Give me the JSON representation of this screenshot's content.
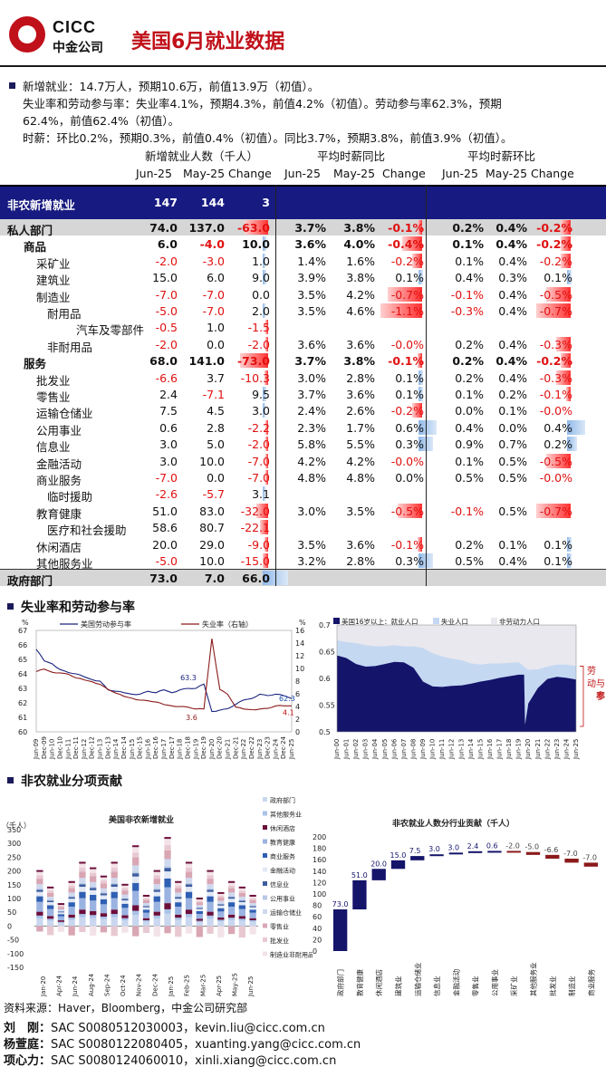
{
  "header": {
    "logo_en": "CICC",
    "logo_cn": "中金公司",
    "title": "美国6月就业数据"
  },
  "summary": {
    "line1": "新增就业：14.7万人，预期10.6万，前值13.9万（初值）。",
    "line2": "失业率和劳动参与率：失业率4.1%，预期4.3%，前值4.2%（初值）。劳动参与率62.3%，预期",
    "line3": "62.4%，前值62.4%（初值）。",
    "line4": "时薪：环比0.2%，预期0.3%，前值0.4%（初值）。同比3.7%，预期3.8%，前值3.9%（初值）。"
  },
  "table": {
    "group_headers": [
      "新增就业人数（千人）",
      "平均时薪同比",
      "平均时薪环比"
    ],
    "sub_headers": [
      "Jun-25",
      "May-25",
      "Change",
      "Jun-25",
      "May-25",
      "Change",
      "Jun-25",
      "May-25",
      "Change"
    ],
    "rows": [
      {
        "label": "非农新增就业",
        "indent": 0,
        "style": "banner",
        "v": [
          "147",
          "144",
          "3",
          "",
          "",
          "",
          "",
          "",
          ""
        ]
      },
      {
        "label": "私人部门",
        "indent": 0,
        "style": "bold-gray",
        "v": [
          "74.0",
          "137.0",
          "-63.0",
          "3.7%",
          "3.8%",
          "-0.1%",
          "0.2%",
          "0.4%",
          "-0.2%"
        ]
      },
      {
        "label": "商品",
        "indent": 1,
        "style": "bold",
        "v": [
          "6.0",
          "-4.0",
          "10.0",
          "3.6%",
          "4.0%",
          "-0.4%",
          "0.1%",
          "0.4%",
          "-0.2%"
        ]
      },
      {
        "label": "采矿业",
        "indent": 2,
        "style": "",
        "v": [
          "-2.0",
          "-3.0",
          "1.0",
          "1.4%",
          "1.6%",
          "-0.2%",
          "0.1%",
          "0.4%",
          "-0.2%"
        ]
      },
      {
        "label": "建筑业",
        "indent": 2,
        "style": "",
        "v": [
          "15.0",
          "6.0",
          "9.0",
          "3.9%",
          "3.8%",
          "0.1%",
          "0.4%",
          "0.3%",
          "0.1%"
        ]
      },
      {
        "label": "制造业",
        "indent": 2,
        "style": "",
        "v": [
          "-7.0",
          "-7.0",
          "0.0",
          "3.5%",
          "4.2%",
          "-0.7%",
          "-0.1%",
          "0.4%",
          "-0.5%"
        ]
      },
      {
        "label": "耐用品",
        "indent": 3,
        "style": "",
        "v": [
          "-5.0",
          "-7.0",
          "2.0",
          "3.5%",
          "4.6%",
          "-1.1%",
          "-0.3%",
          "0.4%",
          "-0.7%"
        ]
      },
      {
        "label": "汽车及零部件",
        "indent": 4,
        "style": "",
        "v": [
          "-0.5",
          "1.0",
          "-1.5",
          "",
          "",
          "",
          "",
          "",
          ""
        ]
      },
      {
        "label": "非耐用品",
        "indent": 3,
        "style": "",
        "v": [
          "-2.0",
          "0.0",
          "-2.0",
          "3.6%",
          "3.6%",
          "-0.0%",
          "0.2%",
          "0.4%",
          "-0.3%"
        ]
      },
      {
        "label": "服务",
        "indent": 1,
        "style": "bold",
        "v": [
          "68.0",
          "141.0",
          "-73.0",
          "3.7%",
          "3.8%",
          "-0.1%",
          "0.2%",
          "0.4%",
          "-0.2%"
        ]
      },
      {
        "label": "批发业",
        "indent": 2,
        "style": "",
        "v": [
          "-6.6",
          "3.7",
          "-10.3",
          "3.0%",
          "2.8%",
          "0.1%",
          "0.2%",
          "0.4%",
          "-0.3%"
        ]
      },
      {
        "label": "零售业",
        "indent": 2,
        "style": "",
        "v": [
          "2.4",
          "-7.1",
          "9.5",
          "3.7%",
          "3.6%",
          "0.1%",
          "0.1%",
          "0.2%",
          "-0.1%"
        ]
      },
      {
        "label": "运输仓储业",
        "indent": 2,
        "style": "",
        "v": [
          "7.5",
          "4.5",
          "3.0",
          "2.4%",
          "2.6%",
          "-0.2%",
          "0.0%",
          "0.1%",
          "-0.0%"
        ]
      },
      {
        "label": "公用事业",
        "indent": 2,
        "style": "",
        "v": [
          "0.6",
          "2.8",
          "-2.2",
          "2.3%",
          "1.7%",
          "0.6%",
          "0.4%",
          "0.0%",
          "0.4%"
        ]
      },
      {
        "label": "信息业",
        "indent": 2,
        "style": "",
        "v": [
          "3.0",
          "5.0",
          "-2.0",
          "5.8%",
          "5.5%",
          "0.3%",
          "0.9%",
          "0.7%",
          "0.2%"
        ]
      },
      {
        "label": "金融活动",
        "indent": 2,
        "style": "",
        "v": [
          "3.0",
          "10.0",
          "-7.0",
          "4.2%",
          "4.2%",
          "-0.0%",
          "0.1%",
          "0.5%",
          "-0.5%"
        ]
      },
      {
        "label": "商业服务",
        "indent": 2,
        "style": "",
        "v": [
          "-7.0",
          "0.0",
          "-7.0",
          "4.8%",
          "4.8%",
          "0.0%",
          "0.5%",
          "0.5%",
          "-0.0%"
        ]
      },
      {
        "label": "临时援助",
        "indent": 3,
        "style": "",
        "v": [
          "-2.6",
          "-5.7",
          "3.1",
          "",
          "",
          "",
          "",
          "",
          ""
        ]
      },
      {
        "label": "教育健康",
        "indent": 2,
        "style": "",
        "v": [
          "51.0",
          "83.0",
          "-32.0",
          "3.0%",
          "3.5%",
          "-0.5%",
          "-0.1%",
          "0.5%",
          "-0.7%"
        ]
      },
      {
        "label": "医疗和社会援助",
        "indent": 3,
        "style": "",
        "v": [
          "58.6",
          "80.7",
          "-22.1",
          "",
          "",
          "",
          "",
          "",
          ""
        ]
      },
      {
        "label": "休闲酒店",
        "indent": 2,
        "style": "",
        "v": [
          "20.0",
          "29.0",
          "-9.0",
          "3.5%",
          "3.6%",
          "-0.1%",
          "0.2%",
          "0.1%",
          "0.1%"
        ]
      },
      {
        "label": "其他服务业",
        "indent": 2,
        "style": "",
        "v": [
          "-5.0",
          "10.0",
          "-15.0",
          "3.2%",
          "2.8%",
          "0.3%",
          "0.5%",
          "0.4%",
          "0.1%"
        ]
      },
      {
        "label": "政府部门",
        "indent": 0,
        "style": "bold-gray",
        "v": [
          "73.0",
          "7.0",
          "66.0",
          "",
          "",
          "",
          "",
          "",
          ""
        ]
      }
    ]
  },
  "section2": {
    "title": "失业率和劳动参与率"
  },
  "section3": {
    "title": "非农就业分项贡献"
  },
  "chart_data": [
    {
      "type": "line",
      "series": [
        {
          "name": "美国劳动参与率",
          "color": "#1a237e",
          "last_label": "62.3",
          "peak_label": "63.3"
        },
        {
          "name": "失业率（右轴）",
          "color": "#8b1a1a",
          "last_label": "4.1",
          "low_label": "3.6"
        }
      ],
      "ylim_left": [
        60,
        67
      ],
      "ylim_right": [
        0,
        16
      ],
      "ylabel_left": "%",
      "ylabel_right": "%",
      "yticks_left": [
        "67",
        "66",
        "65",
        "64",
        "63",
        "62",
        "61",
        "60"
      ],
      "yticks_right": [
        "16",
        "14",
        "12",
        "10",
        "8",
        "6",
        "4",
        "2",
        "0"
      ],
      "x": [
        "Jun-09",
        "Dec-09",
        "Jun-10",
        "Dec-10",
        "Jun-11",
        "Dec-11",
        "Jun-12",
        "Dec-12",
        "Jun-13",
        "Dec-13",
        "Jun-14",
        "Dec-14",
        "Jun-15",
        "Dec-15",
        "Jun-16",
        "Dec-16",
        "Jun-17",
        "Dec-17",
        "Jun-18",
        "Dec-18",
        "Jun-19",
        "Dec-19",
        "Jun-20",
        "Dec-20",
        "Jun-21",
        "Dec-21",
        "Jun-22",
        "Dec-22",
        "Jun-23",
        "Dec-23",
        "Jun-24",
        "Dec-24",
        "Jun-25"
      ],
      "lfpr": [
        65.7,
        64.9,
        64.7,
        64.3,
        64.1,
        64.0,
        63.8,
        63.6,
        63.5,
        62.9,
        62.8,
        62.7,
        62.6,
        62.6,
        62.8,
        62.7,
        62.9,
        62.7,
        62.9,
        63.0,
        63.0,
        63.3,
        61.4,
        61.5,
        61.6,
        61.9,
        62.2,
        62.3,
        62.6,
        62.5,
        62.6,
        62.5,
        62.3
      ],
      "unrate": [
        9.5,
        9.9,
        9.4,
        9.3,
        9.1,
        8.5,
        8.2,
        7.9,
        7.5,
        6.7,
        6.1,
        5.6,
        5.3,
        5.0,
        4.9,
        4.7,
        4.3,
        4.1,
        4.0,
        3.9,
        3.6,
        3.6,
        11.0,
        6.7,
        5.9,
        3.9,
        3.6,
        3.5,
        3.6,
        3.7,
        4.1,
        4.1,
        4.1
      ]
    },
    {
      "type": "area",
      "legend": [
        "美国16岁以上：就业人口",
        "失业人口",
        "非劳动力人口"
      ],
      "colors": [
        "#14146b",
        "#c5d8f2",
        "#e8e8ee"
      ],
      "ylim": [
        0.5,
        0.7
      ],
      "yticks": [
        "0.7",
        "0.65",
        "0.6",
        "0.55",
        "0.5"
      ],
      "annotation": "劳动参与率",
      "x": [
        "Jun-00",
        "Jun-01",
        "Jun-02",
        "Jun-03",
        "Jun-04",
        "Jun-05",
        "Jun-06",
        "Jun-07",
        "Jun-08",
        "Jun-09",
        "Jun-10",
        "Jun-11",
        "Jun-12",
        "Jun-13",
        "Jun-14",
        "Jun-15",
        "Jun-16",
        "Jun-17",
        "Jun-18",
        "Jun-19",
        "Jun-20",
        "Jun-21",
        "Jun-22",
        "Jun-23",
        "Jun-24",
        "Jun-25"
      ],
      "employed": [
        0.643,
        0.638,
        0.627,
        0.622,
        0.623,
        0.627,
        0.631,
        0.63,
        0.62,
        0.594,
        0.585,
        0.584,
        0.586,
        0.587,
        0.59,
        0.594,
        0.597,
        0.601,
        0.604,
        0.607,
        0.553,
        0.582,
        0.599,
        0.603,
        0.601,
        0.598
      ],
      "participation": [
        0.671,
        0.668,
        0.666,
        0.662,
        0.66,
        0.66,
        0.662,
        0.66,
        0.66,
        0.657,
        0.647,
        0.641,
        0.637,
        0.634,
        0.628,
        0.626,
        0.628,
        0.628,
        0.629,
        0.63,
        0.616,
        0.617,
        0.622,
        0.626,
        0.626,
        0.623
      ]
    },
    {
      "type": "bar",
      "stacked": true,
      "title": "美国非农新增就业",
      "ylabel": "（千人）",
      "ylim": [
        -150,
        350
      ],
      "yticks": [
        "350",
        "300",
        "250",
        "200",
        "150",
        "100",
        "50",
        "0",
        "-50",
        "-100",
        "-150"
      ],
      "categories_labeled": [
        "Jan-20",
        "Apr-24",
        "Jun-24",
        "Aug-24",
        "Sep-24",
        "Oct-24",
        "Nov-24",
        "Dec-24",
        "Jan-25",
        "Feb-25",
        "Mar-25",
        "Apr-25",
        "May-25",
        "Jun-25"
      ],
      "legend": [
        "政府部门",
        "其他服务业",
        "休闲酒店",
        "教育健康",
        "商业服务",
        "金融活动",
        "信息业",
        "公用事业",
        "运输仓储业",
        "零售业",
        "批发业",
        "制造业非耐用品"
      ],
      "totals": [
        200,
        140,
        80,
        160,
        230,
        210,
        180,
        230,
        150,
        290,
        110,
        200,
        320,
        160,
        230,
        100,
        200,
        120,
        160,
        140,
        110
      ]
    },
    {
      "type": "bar",
      "subtype": "waterfall",
      "title": "非农就业人数分行业贡献（千人）",
      "ylim": [
        0,
        200
      ],
      "yticks": [
        "200",
        "180",
        "160",
        "140",
        "120",
        "100",
        "80",
        "60",
        "40",
        "20",
        "0"
      ],
      "categories": [
        "政府部门",
        "教育健康",
        "休闲酒店",
        "建筑业",
        "运输仓储业",
        "信息业",
        "金融活动",
        "零售业",
        "公用事业",
        "采矿业",
        "其他服务业",
        "批发业",
        "制造业",
        "商业服务"
      ],
      "values": [
        73.0,
        51.0,
        20.0,
        15.0,
        7.5,
        3.0,
        3.0,
        2.4,
        0.6,
        -2.0,
        -5.0,
        -6.6,
        -7.0,
        -7.0
      ],
      "labels": [
        "73.0",
        "51.0",
        "20.0",
        "15.0",
        "7.5",
        "3.0",
        "3.0",
        "2.4",
        "0.6",
        "-2.0",
        "-5.0",
        "-6.6",
        "-7.0",
        "-7.0"
      ]
    }
  ],
  "source": "资料来源：Haver，Bloomberg，中金公司研究部",
  "authors": [
    {
      "name": "刘　刚：",
      "sac": "SAC S0080512030003，",
      "email": "kevin.liu@cicc.com.cn"
    },
    {
      "name": "杨萱庭：",
      "sac": "SAC S0080122080405，",
      "email": "xuanting.yang@cicc.com.cn"
    },
    {
      "name": "项心力：",
      "sac": "SAC S0080124060010，",
      "email": "xinli.xiang@cicc.com.cn"
    }
  ]
}
